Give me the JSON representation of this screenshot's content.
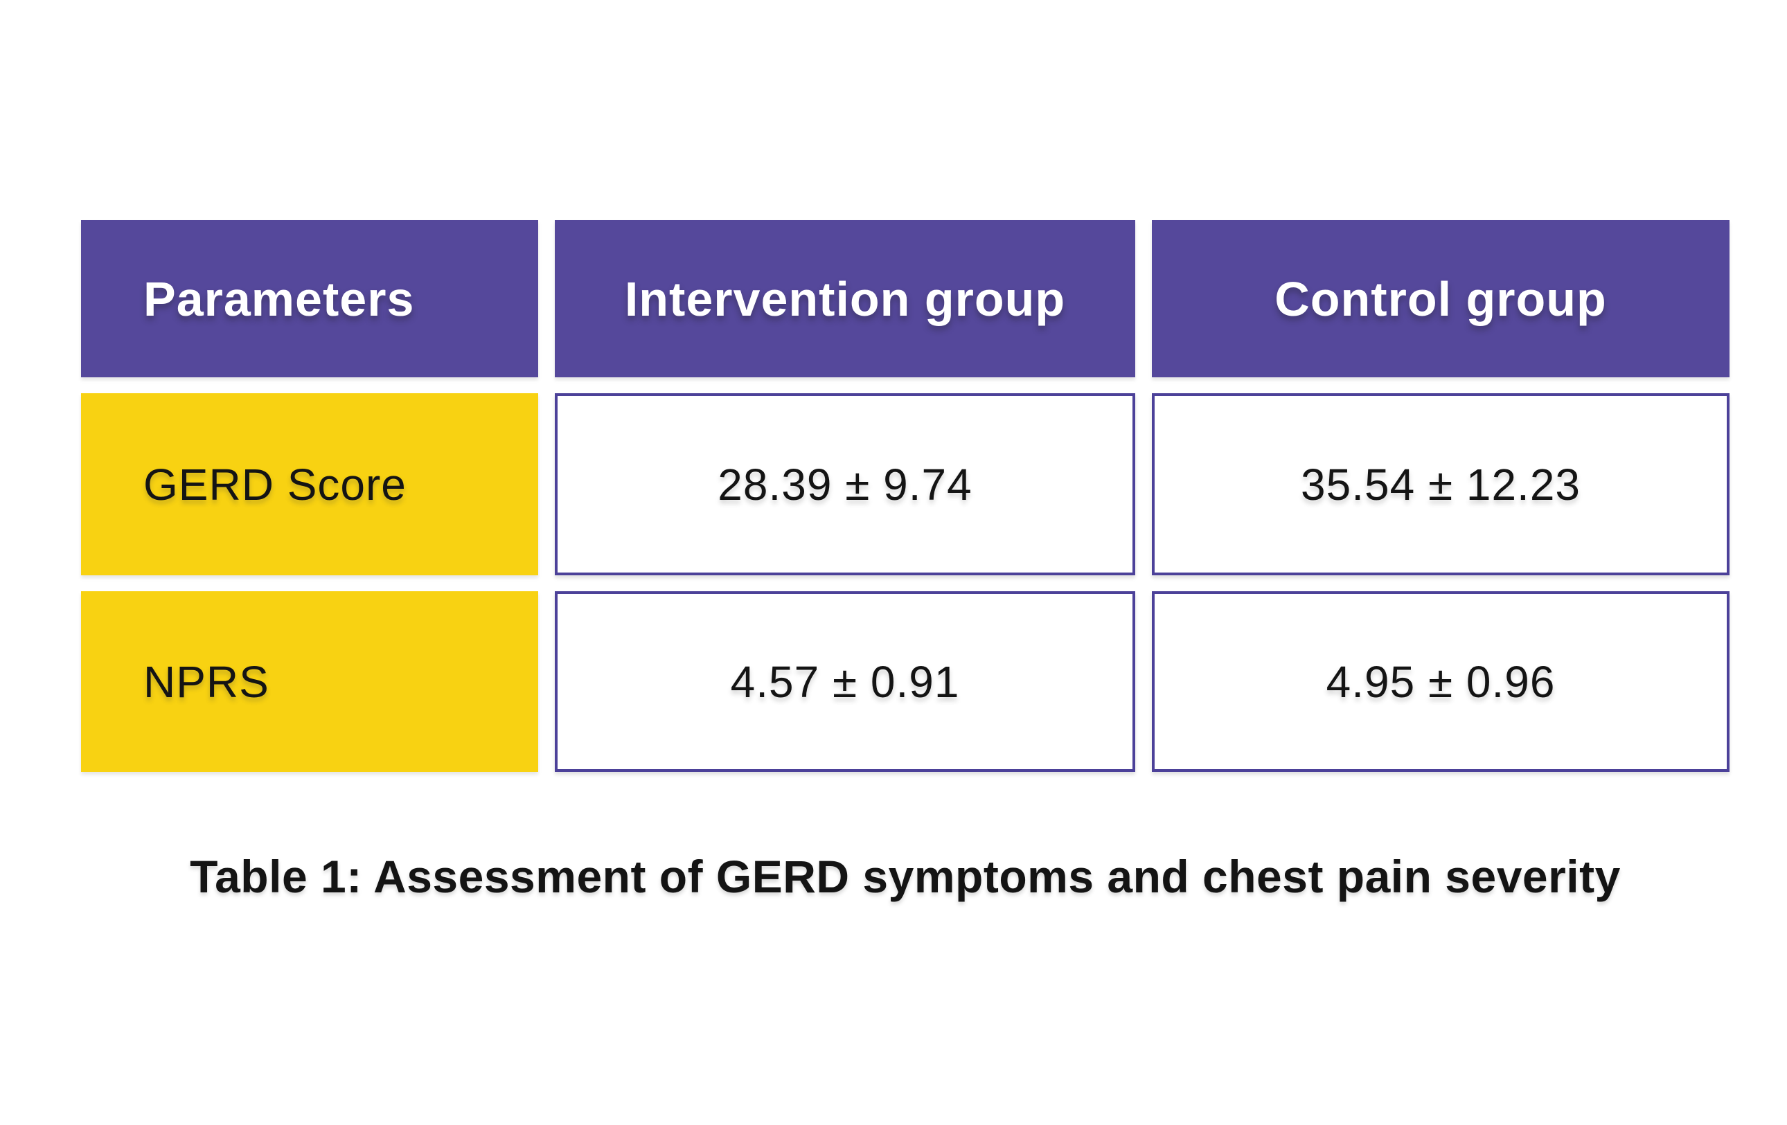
{
  "colors": {
    "page_bg": "#ffffff",
    "header_purple": "#55489B",
    "border_purple": "#4C4199",
    "row_yellow": "#F8D212",
    "header_text": "#ffffff",
    "text_dark": "#141414"
  },
  "table": {
    "columns": [
      "Parameters",
      "Intervention group",
      "Control group"
    ],
    "rows": [
      {
        "parameter": "GERD Score",
        "intervention": "28.39 ± 9.74",
        "control": "35.54 ± 12.23"
      },
      {
        "parameter": "NPRS",
        "intervention": "4.57 ± 0.91",
        "control": "4.95 ± 0.96"
      }
    ],
    "caption": "Table 1: Assessment of GERD symptoms and chest pain severity"
  },
  "chart_data": {
    "type": "table",
    "title": "Table 1: Assessment of GERD symptoms and chest pain severity",
    "columns": [
      "Parameters",
      "Intervention group",
      "Control group"
    ],
    "rows": [
      [
        "GERD Score",
        "28.39 ± 9.74",
        "35.54 ± 12.23"
      ],
      [
        "NPRS",
        "4.57 ± 0.91",
        "4.95 ± 0.96"
      ]
    ],
    "values": {
      "GERD_Score": {
        "intervention": {
          "mean": 28.39,
          "sd": 9.74
        },
        "control": {
          "mean": 35.54,
          "sd": 12.23
        }
      },
      "NPRS": {
        "intervention": {
          "mean": 4.57,
          "sd": 0.91
        },
        "control": {
          "mean": 4.95,
          "sd": 0.96
        }
      }
    },
    "layout_hints": {
      "header_fill": "#55489B",
      "row_label_fill": "#F8D212",
      "value_cell_border": "#4C4199",
      "caption_position": "below-table-centered"
    }
  }
}
